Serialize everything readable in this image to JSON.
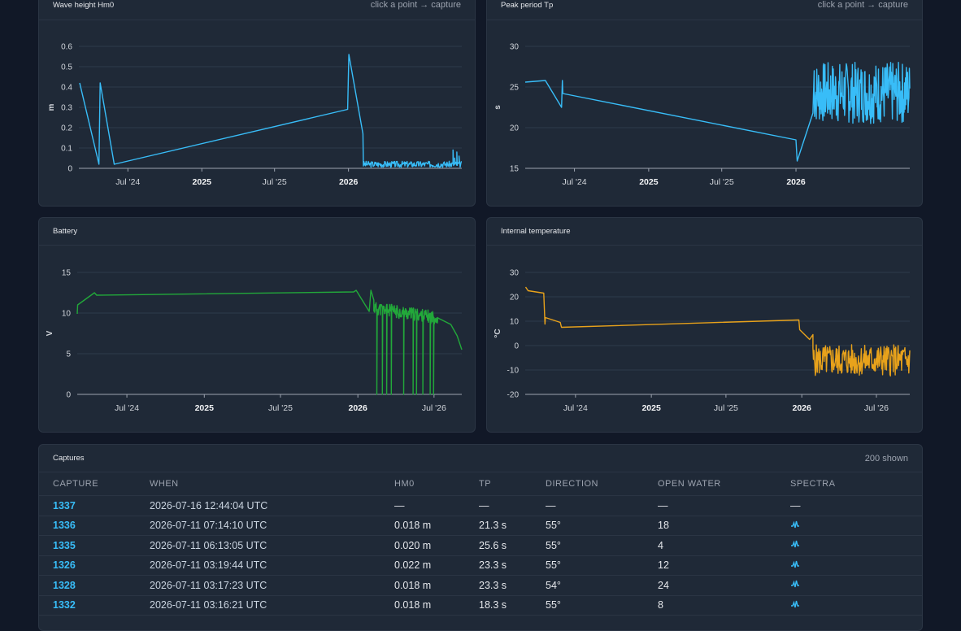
{
  "charts": {
    "wave": {
      "title": "Wave height Hm0",
      "hint": "click a point → capture"
    },
    "peak": {
      "title": "Peak period Tp",
      "hint": "click a point → capture"
    },
    "battery": {
      "title": "Battery"
    },
    "temp": {
      "title": "Internal temperature"
    }
  },
  "captures": {
    "title": "Captures",
    "count": "200 shown",
    "headers": [
      "CAPTURE",
      "WHEN",
      "HM0",
      "TP",
      "DIRECTION",
      "OPEN WATER",
      "SPECTRA"
    ],
    "rows": [
      {
        "id": "1337",
        "when": "2026-07-16 12:44:04 UTC",
        "hm0": "—",
        "tp": "—",
        "dir": "—",
        "open": "—",
        "spectra": "—"
      },
      {
        "id": "1336",
        "when": "2026-07-11 07:14:10 UTC",
        "hm0": "0.018 m",
        "tp": "21.3 s",
        "dir": "55°",
        "open": "18",
        "spectra": "spectra-icon"
      },
      {
        "id": "1335",
        "when": "2026-07-11 06:13:05 UTC",
        "hm0": "0.020 m",
        "tp": "25.6 s",
        "dir": "55°",
        "open": "4",
        "spectra": "spectra-icon"
      },
      {
        "id": "1326",
        "when": "2026-07-11 03:19:44 UTC",
        "hm0": "0.022 m",
        "tp": "23.3 s",
        "dir": "55°",
        "open": "12",
        "spectra": "spectra-icon"
      },
      {
        "id": "1328",
        "when": "2026-07-11 03:17:23 UTC",
        "hm0": "0.018 m",
        "tp": "23.3 s",
        "dir": "54°",
        "open": "24",
        "spectra": "spectra-icon"
      },
      {
        "id": "1332",
        "when": "2026-07-11 03:16:21 UTC",
        "hm0": "0.018 m",
        "tp": "18.3 s",
        "dir": "55°",
        "open": "8",
        "spectra": "spectra-icon"
      }
    ]
  },
  "chart_data": [
    {
      "type": "line",
      "title": "Wave height Hm0",
      "ylabel": "m",
      "color": "#38bdf8",
      "xlim": [
        "2024-03-01",
        "2026-10-10"
      ],
      "ylim": [
        0,
        0.6
      ],
      "yticks": [
        0,
        0.1,
        0.2,
        0.3,
        0.4,
        0.5,
        0.6
      ],
      "xticks": [
        {
          "label": "Jul '24",
          "date": "2024-07-01",
          "bold": false
        },
        {
          "label": "2025",
          "date": "2025-01-01",
          "bold": true
        },
        {
          "label": "Jul '25",
          "date": "2025-07-01",
          "bold": false
        },
        {
          "label": "2026",
          "date": "2026-01-01",
          "bold": true
        }
      ],
      "points": [
        [
          "2024-03-03",
          0.42
        ],
        [
          "2024-04-20",
          0.02
        ],
        [
          "2024-04-23",
          0.42
        ],
        [
          "2024-05-28",
          0.02
        ],
        [
          "2025-12-30",
          0.29
        ],
        [
          "2026-01-02",
          0.56
        ],
        [
          "2026-02-06",
          0.17
        ],
        [
          "2026-02-07",
          0.02
        ]
      ],
      "noise": {
        "from": "2026-02-07",
        "to": "2026-10-10",
        "n": 180,
        "base": 0.02,
        "amp": 0.015,
        "seed": 3,
        "spikes": [
          [
            "2026-09-18",
            0.09
          ],
          [
            "2026-09-22",
            0.05
          ],
          [
            "2026-09-28",
            0.08
          ],
          [
            "2026-10-03",
            0.06
          ]
        ]
      }
    },
    {
      "type": "line",
      "title": "Peak period Tp",
      "ylabel": "s",
      "color": "#38bdf8",
      "xlim": [
        "2024-03-01",
        "2026-10-10"
      ],
      "ylim": [
        15,
        30
      ],
      "yticks": [
        15,
        20,
        25,
        30
      ],
      "xticks": [
        {
          "label": "Jul '24",
          "date": "2024-07-01",
          "bold": false
        },
        {
          "label": "2025",
          "date": "2025-01-01",
          "bold": true
        },
        {
          "label": "Jul '25",
          "date": "2025-07-01",
          "bold": false
        },
        {
          "label": "2026",
          "date": "2026-01-01",
          "bold": true
        }
      ],
      "points": [
        [
          "2024-03-01",
          25.6
        ],
        [
          "2024-04-20",
          25.8
        ],
        [
          "2024-05-30",
          22.5
        ],
        [
          "2024-06-01",
          25.8
        ],
        [
          "2024-06-02",
          24.2
        ],
        [
          "2026-01-01",
          18.5
        ],
        [
          "2026-01-04",
          15.9
        ],
        [
          "2026-02-12",
          21.8
        ],
        [
          "2026-02-15",
          27.0
        ]
      ],
      "noise": {
        "from": "2026-02-15",
        "to": "2026-10-10",
        "n": 220,
        "base": 24.3,
        "amp": 3.8,
        "seed": 7,
        "spikes": []
      }
    },
    {
      "type": "line",
      "title": "Battery",
      "ylabel": "V",
      "color": "#22a83a",
      "xlim": [
        "2024-03-05",
        "2026-09-05"
      ],
      "ylim": [
        0,
        15
      ],
      "yticks": [
        0,
        5,
        10,
        15
      ],
      "xticks": [
        {
          "label": "Jul '24",
          "date": "2024-07-01",
          "bold": false
        },
        {
          "label": "2025",
          "date": "2025-01-01",
          "bold": true
        },
        {
          "label": "Jul '25",
          "date": "2025-07-01",
          "bold": false
        },
        {
          "label": "2026",
          "date": "2026-01-01",
          "bold": true
        },
        {
          "label": "Jul '26",
          "date": "2026-07-01",
          "bold": false
        }
      ],
      "points": [
        [
          "2024-03-05",
          9.9
        ],
        [
          "2024-03-06",
          11.0
        ],
        [
          "2024-04-15",
          12.5
        ],
        [
          "2024-04-20",
          12.2
        ],
        [
          "2025-12-22",
          12.6
        ],
        [
          "2025-12-28",
          12.8
        ],
        [
          "2026-01-28",
          10.2
        ],
        [
          "2026-02-01",
          12.8
        ],
        [
          "2026-02-08",
          11.6
        ]
      ],
      "noise": {
        "from": "2026-02-08",
        "to": "2026-07-10",
        "n": 150,
        "base": 10.6,
        "amp": 0.8,
        "seed": 11,
        "drops": [
          "2026-02-15",
          "2026-02-28",
          "2026-03-10",
          "2026-03-22",
          "2026-04-20",
          "2026-05-12",
          "2026-05-20",
          "2026-06-05",
          "2026-06-22",
          "2026-06-30"
        ]
      },
      "tail": [
        [
          "2026-07-10",
          9.4
        ],
        [
          "2026-08-10",
          8.6
        ],
        [
          "2026-08-25",
          7.2
        ],
        [
          "2026-09-05",
          5.5
        ]
      ]
    },
    {
      "type": "line",
      "title": "Internal temperature",
      "ylabel": "°C",
      "color": "#e8a21b",
      "xlim": [
        "2024-03-01",
        "2026-09-20"
      ],
      "ylim": [
        -20,
        30
      ],
      "yticks": [
        -20,
        -10,
        0,
        10,
        20,
        30
      ],
      "xticks": [
        {
          "label": "Jul '24",
          "date": "2024-07-01",
          "bold": false
        },
        {
          "label": "2025",
          "date": "2025-01-01",
          "bold": true
        },
        {
          "label": "Jul '25",
          "date": "2025-07-01",
          "bold": false
        },
        {
          "label": "2026",
          "date": "2026-01-01",
          "bold": true
        },
        {
          "label": "Jul '26",
          "date": "2026-07-01",
          "bold": false
        }
      ],
      "points": [
        [
          "2024-03-02",
          24.0
        ],
        [
          "2024-03-08",
          22.5
        ],
        [
          "2024-04-15",
          21.5
        ],
        [
          "2024-04-18",
          8.8
        ],
        [
          "2024-04-19",
          11.5
        ],
        [
          "2024-05-25",
          9.5
        ],
        [
          "2024-05-28",
          7.5
        ],
        [
          "2025-12-25",
          10.5
        ],
        [
          "2025-12-27",
          6.5
        ],
        [
          "2026-01-20",
          2.5
        ],
        [
          "2026-01-28",
          4.5
        ]
      ],
      "noise": {
        "from": "2026-01-28",
        "to": "2026-09-20",
        "n": 200,
        "base": -6.0,
        "amp": 6.5,
        "seed": 5,
        "spikes": []
      }
    }
  ]
}
